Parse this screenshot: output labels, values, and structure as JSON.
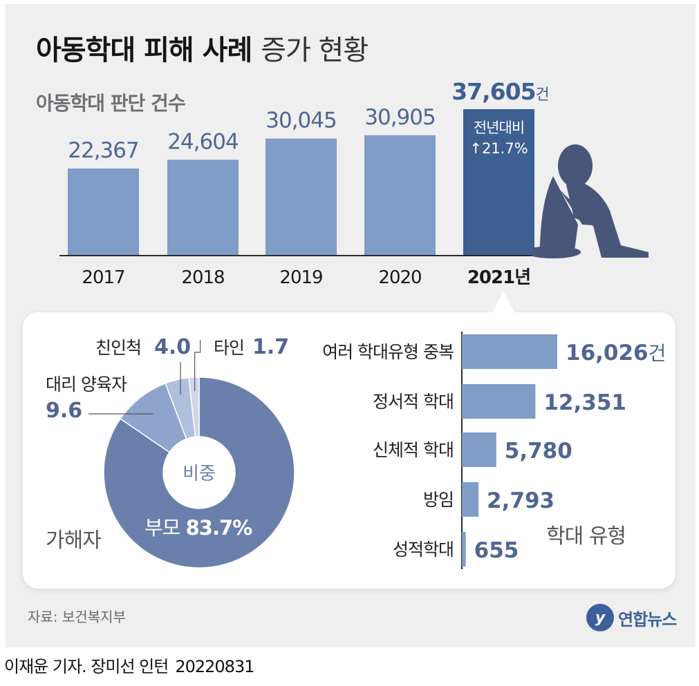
{
  "header": {
    "title_bold": "아동학대 피해 사례",
    "title_light": "증가 현황",
    "subtitle": "아동학대 판단 건수"
  },
  "chart_data": [
    {
      "type": "bar",
      "title": "아동학대 판단 건수",
      "categories": [
        "2017",
        "2018",
        "2019",
        "2020",
        "2021년"
      ],
      "values": [
        22367,
        24604,
        30045,
        30905,
        37605
      ],
      "value_labels": [
        "22,367",
        "24,604",
        "30,045",
        "30,905",
        "37,605"
      ],
      "value_unit": "건",
      "highlight": {
        "index": 4,
        "label_line1": "전년대비",
        "label_line2": "↑21.7%",
        "color": "#3e5f91"
      },
      "bar_color": "#7f9dc6"
    },
    {
      "type": "pie",
      "title": "가해자",
      "center_label": "비중",
      "slices": [
        {
          "label": "부모",
          "value": 83.7,
          "value_label": "83.7%",
          "color": "#6a7fab"
        },
        {
          "label": "대리 양육자",
          "value": 9.6,
          "value_label": "9.6",
          "color": "#8ea4cd"
        },
        {
          "label": "친인척",
          "value": 4.0,
          "value_label": "4.0",
          "color": "#afbfde"
        },
        {
          "label": "타인",
          "value": 1.7,
          "value_label": "1.7",
          "color": "#cdd7ea"
        }
      ]
    },
    {
      "type": "bar",
      "orientation": "horizontal",
      "title": "학대 유형",
      "categories": [
        "여러 학대유형 중복",
        "정서적 학대",
        "신체적 학대",
        "방임",
        "성적학대"
      ],
      "values": [
        16026,
        12351,
        5780,
        2793,
        655
      ],
      "value_labels": [
        "16,026",
        "12,351",
        "5,780",
        "2,793",
        "655"
      ],
      "first_unit": "건",
      "bar_color": "#7f9dc6"
    }
  ],
  "footer": {
    "source": "자료: 보건복지부",
    "logo_text": "연합뉴스",
    "byline": "이재윤 기자. 장미선 인턴",
    "date": "20220831"
  },
  "colors": {
    "panel_bg": "#efeff0",
    "value_text": "#4f6691",
    "dark_value_text": "#3e5f91"
  }
}
